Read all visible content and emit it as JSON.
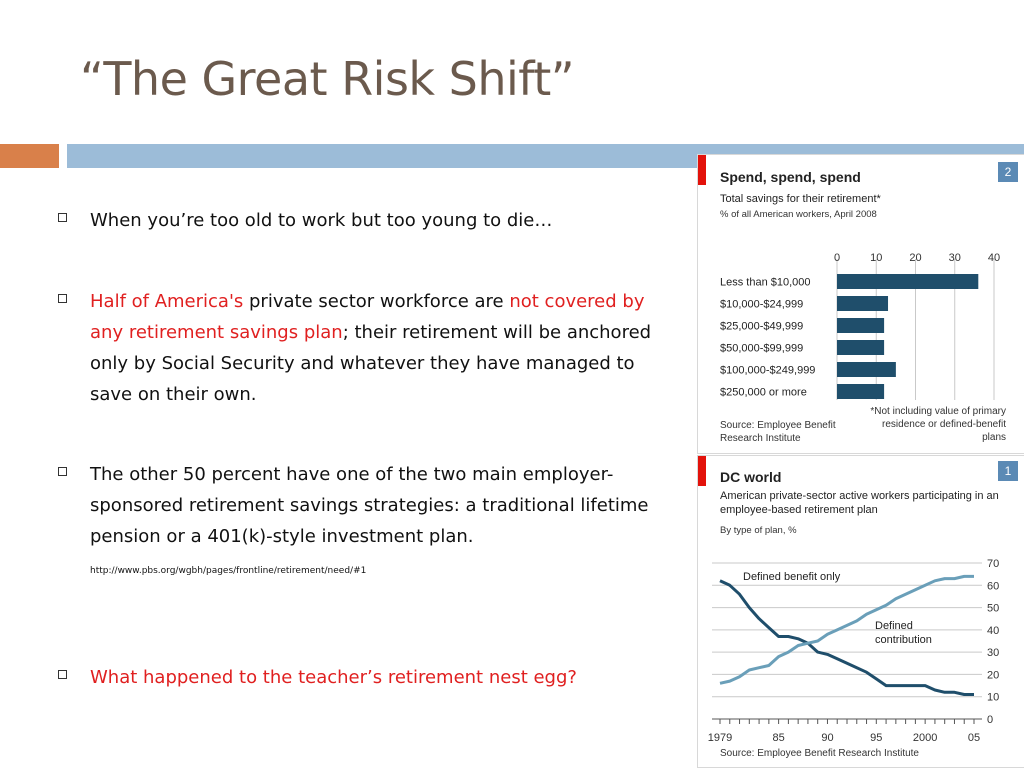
{
  "slide": {
    "title": "“The Great Risk Shift”",
    "colors": {
      "title": "#6b5a4d",
      "accent_orange": "#d9804a",
      "accent_blue": "#9cbcd8",
      "highlight_red": "#e02020"
    }
  },
  "bullets": {
    "b1": {
      "text": "When you’re too old to work but too young to die…"
    },
    "b2": {
      "part1": "Half of America's",
      "part2": " private sector workforce are ",
      "part3": "not covered by any retirement savings plan",
      "part4": "; their retirement will be anchored only by Social Security and whatever they have managed to save on their own."
    },
    "b3": {
      "text": "The other 50 percent have one of the two main employer-sponsored retirement savings strategies: a traditional lifetime pension or a 401(k)-style investment plan.",
      "url": "http://www.pbs.org/wgbh/pages/frontline/retirement/need/#1"
    },
    "b4": {
      "text": "What happened to the teacher’s retirement nest egg?"
    }
  },
  "chart_data": [
    {
      "type": "bar",
      "orientation": "horizontal",
      "title": "Spend, spend, spend",
      "subtitle": "Total savings for their retirement*",
      "subtitle2": "% of all American workers, April 2008",
      "badge": "2",
      "categories": [
        "Less than $10,000",
        "$10,000-$24,999",
        "$25,000-$49,999",
        "$50,000-$99,999",
        "$100,000-$249,999",
        "$250,000 or more"
      ],
      "values": [
        36,
        13,
        12,
        12,
        15,
        12
      ],
      "xlim": [
        0,
        40
      ],
      "xticks": [
        0,
        10,
        20,
        30,
        40
      ],
      "source": "Source: Employee Benefit Research Institute",
      "note": "*Not including value of primary residence or defined-benefit plans",
      "bar_color": "#1f4e6b",
      "grid": true
    },
    {
      "type": "line",
      "title": "DC world",
      "subtitle": "American private-sector active workers participating in an employee-based retirement plan",
      "subtitle2": "By type of plan, %",
      "badge": "1",
      "x": [
        1979,
        1980,
        1981,
        1982,
        1983,
        1984,
        1985,
        1986,
        1987,
        1988,
        1989,
        1990,
        1991,
        1992,
        1993,
        1994,
        1995,
        1996,
        1997,
        1998,
        1999,
        2000,
        2001,
        2002,
        2003,
        2004,
        2005
      ],
      "series": [
        {
          "name": "Defined benefit only",
          "color": "#1f4e6b",
          "values": [
            62,
            60,
            56,
            50,
            45,
            41,
            37,
            37,
            36,
            34,
            30,
            29,
            27,
            25,
            23,
            21,
            18,
            15,
            15,
            15,
            15,
            15,
            13,
            12,
            12,
            11,
            11
          ]
        },
        {
          "name": "Defined contribution",
          "color": "#6a9fb9",
          "values": [
            16,
            17,
            19,
            22,
            23,
            24,
            28,
            30,
            33,
            34,
            35,
            38,
            40,
            42,
            44,
            47,
            49,
            51,
            54,
            56,
            58,
            60,
            62,
            63,
            63,
            64,
            64
          ]
        }
      ],
      "labels": {
        "defined_benefit": "Defined benefit only",
        "defined_contribution_l1": "Defined",
        "defined_contribution_l2": "contribution"
      },
      "ylim": [
        0,
        70
      ],
      "yticks": [
        0,
        10,
        20,
        30,
        40,
        50,
        60,
        70
      ],
      "xtick_labels": [
        "1979",
        "85",
        "90",
        "95",
        "2000",
        "05"
      ],
      "source": "Source: Employee Benefit Research Institute",
      "grid": true
    }
  ]
}
